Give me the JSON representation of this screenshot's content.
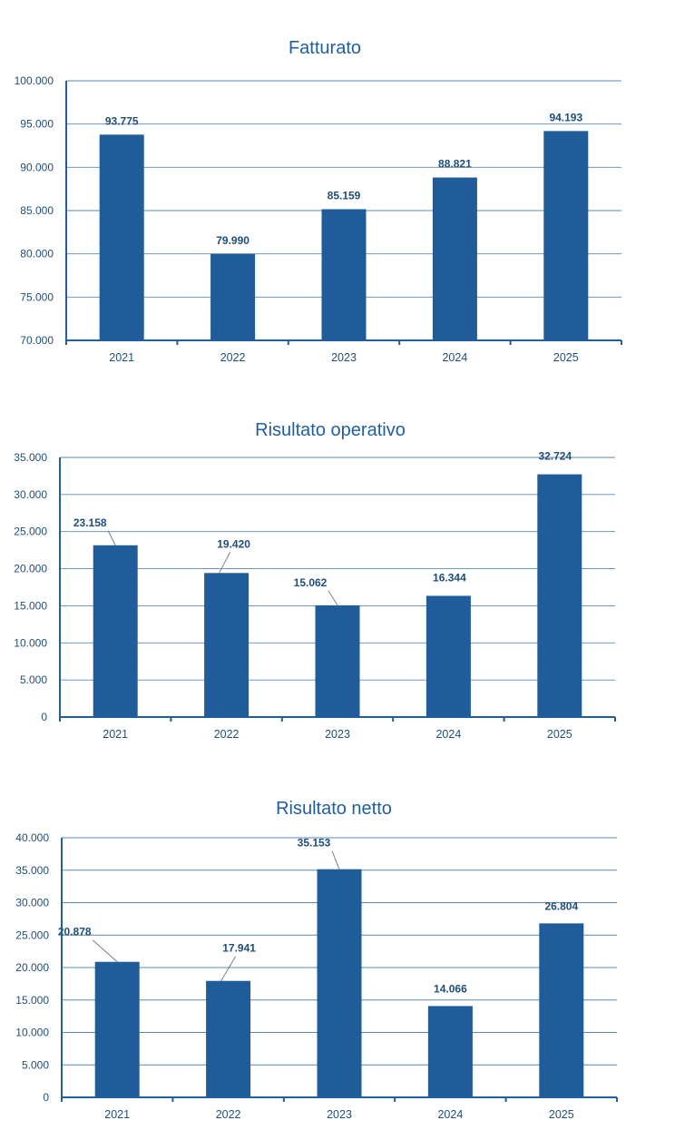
{
  "chart_data": [
    {
      "type": "bar",
      "title": "Fatturato",
      "categories": [
        "2021",
        "2022",
        "2023",
        "2024",
        "2025"
      ],
      "values": [
        93775,
        79990,
        85159,
        88821,
        94193
      ],
      "labels": [
        "93.775",
        "79.990",
        "85.159",
        "88.821",
        "94.193"
      ],
      "ylim": [
        70000,
        100000
      ],
      "yticks": [
        "70.000",
        "75.000",
        "80.000",
        "85.000",
        "90.000",
        "95.000",
        "100.000"
      ],
      "xlabel": "",
      "ylabel": "",
      "grid": true,
      "legend": "none",
      "color": "#1f5c99"
    },
    {
      "type": "bar",
      "title": "Risultato operativo",
      "categories": [
        "2021",
        "2022",
        "2023",
        "2024",
        "2025"
      ],
      "values": [
        23158,
        19420,
        15062,
        16344,
        32724
      ],
      "labels": [
        "23.158",
        "19.420",
        "15.062",
        "16.344",
        "32.724"
      ],
      "ylim": [
        0,
        35000
      ],
      "yticks": [
        "0",
        "5.000",
        "10.000",
        "15.000",
        "20.000",
        "25.000",
        "30.000",
        "35.000"
      ],
      "xlabel": "",
      "ylabel": "",
      "grid": true,
      "legend": "none",
      "color": "#1f5c99"
    },
    {
      "type": "bar",
      "title": "Risultato netto",
      "categories": [
        "2021",
        "2022",
        "2023",
        "2024",
        "2025"
      ],
      "values": [
        20878,
        17941,
        35153,
        14066,
        26804
      ],
      "labels": [
        "20.878",
        "17.941",
        "35.153",
        "14.066",
        "26.804"
      ],
      "ylim": [
        0,
        40000
      ],
      "yticks": [
        "0",
        "5.000",
        "10.000",
        "15.000",
        "20.000",
        "25.000",
        "30.000",
        "35.000",
        "40.000"
      ],
      "xlabel": "",
      "ylabel": "",
      "grid": true,
      "legend": "none",
      "color": "#1f5c99"
    }
  ]
}
